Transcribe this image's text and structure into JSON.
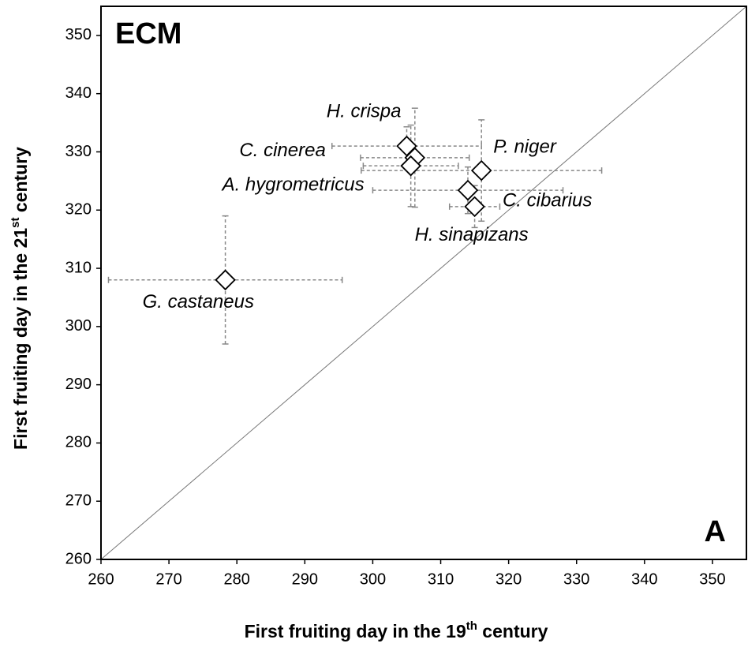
{
  "chart_data": {
    "type": "scatter",
    "labels": [
      "H. crispa",
      "C. cinerea",
      "A. hygrometricus",
      "P. niger",
      "C. cibarius",
      "H. sinapizans",
      "G. castaneus"
    ],
    "x": [
      305,
      306.2,
      305.6,
      316,
      314,
      315,
      278.3
    ],
    "y": [
      331,
      329,
      327.6,
      326.8,
      323.4,
      320.6,
      308
    ],
    "xerr": [
      11,
      8,
      7,
      17.7,
      14,
      3.7,
      17.2
    ],
    "yerr": [
      3.3,
      8.5,
      7,
      8.7,
      4,
      3.6,
      11
    ],
    "marker_color": "#ffffff",
    "edge_color": "#000000",
    "error_color": "#888888",
    "xlim": [
      260,
      355
    ],
    "ylim": [
      260,
      355
    ],
    "xticks": [
      260,
      270,
      280,
      290,
      300,
      310,
      320,
      330,
      340,
      350
    ],
    "yticks": [
      260,
      270,
      280,
      290,
      300,
      310,
      320,
      330,
      340,
      350
    ],
    "xlabel": {
      "before": "First fruiting day in the 19",
      "sup": "th",
      "after": " century"
    },
    "ylabel": {
      "before": "First fruiting day in the 21",
      "sup": "st",
      "after": " century"
    },
    "annotations": [
      "ECM",
      "A"
    ],
    "diagonal": true
  }
}
